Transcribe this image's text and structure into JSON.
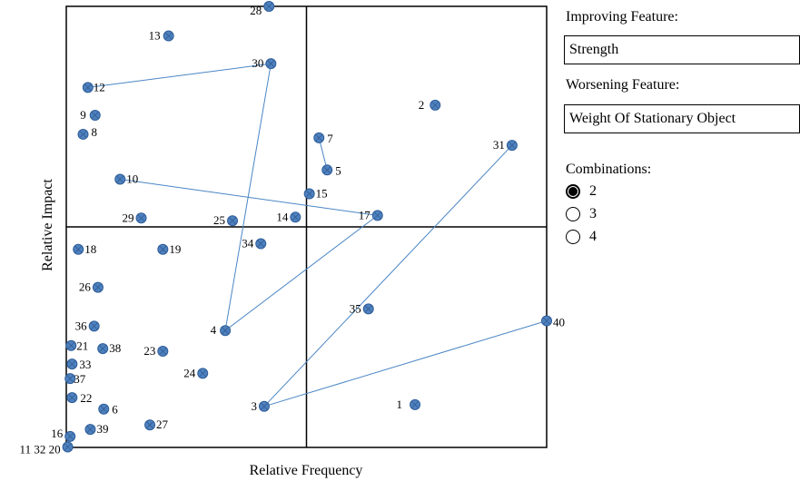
{
  "chart_data": {
    "type": "scatter",
    "xlabel": "Relative Frequency",
    "ylabel": "Relative Impact",
    "xlim": [
      0,
      100
    ],
    "ylim": [
      0,
      100
    ],
    "grid": "quadrant lines at x=50 and y=50",
    "points": [
      {
        "id": "1",
        "x": 72.6,
        "y": 9.7
      },
      {
        "id": "2",
        "x": 76.8,
        "y": 77.6
      },
      {
        "id": "3",
        "x": 41.2,
        "y": 9.3
      },
      {
        "id": "4",
        "x": 33.1,
        "y": 26.5
      },
      {
        "id": "5",
        "x": 54.3,
        "y": 62.9
      },
      {
        "id": "6",
        "x": 7.8,
        "y": 8.7
      },
      {
        "id": "7",
        "x": 52.6,
        "y": 70.2
      },
      {
        "id": "8",
        "x": 3.5,
        "y": 71.0
      },
      {
        "id": "9",
        "x": 6.0,
        "y": 75.3
      },
      {
        "id": "10",
        "x": 11.2,
        "y": 60.8
      },
      {
        "id": "11 32 20",
        "x": 0.3,
        "y": 0.1
      },
      {
        "id": "12",
        "x": 4.5,
        "y": 81.6
      },
      {
        "id": "13",
        "x": 21.3,
        "y": 93.3
      },
      {
        "id": "14",
        "x": 47.7,
        "y": 52.2
      },
      {
        "id": "15",
        "x": 50.6,
        "y": 57.5
      },
      {
        "id": "16",
        "x": 0.8,
        "y": 2.5
      },
      {
        "id": "17",
        "x": 64.8,
        "y": 52.6
      },
      {
        "id": "18",
        "x": 2.5,
        "y": 44.9
      },
      {
        "id": "19",
        "x": 20.1,
        "y": 44.9
      },
      {
        "id": "21",
        "x": 1.0,
        "y": 23.1
      },
      {
        "id": "22",
        "x": 1.2,
        "y": 11.3
      },
      {
        "id": "23",
        "x": 20.1,
        "y": 21.8
      },
      {
        "id": "24",
        "x": 28.4,
        "y": 16.8
      },
      {
        "id": "25",
        "x": 34.6,
        "y": 51.4
      },
      {
        "id": "26",
        "x": 6.6,
        "y": 36.3
      },
      {
        "id": "27",
        "x": 17.4,
        "y": 5.1
      },
      {
        "id": "28",
        "x": 42.2,
        "y": 100.0
      },
      {
        "id": "29",
        "x": 15.6,
        "y": 52.0
      },
      {
        "id": "30",
        "x": 42.6,
        "y": 87.0
      },
      {
        "id": "31",
        "x": 92.8,
        "y": 68.5
      },
      {
        "id": "33",
        "x": 1.2,
        "y": 18.9
      },
      {
        "id": "34",
        "x": 40.5,
        "y": 46.2
      },
      {
        "id": "35",
        "x": 62.9,
        "y": 31.4
      },
      {
        "id": "36",
        "x": 5.8,
        "y": 27.5
      },
      {
        "id": "37",
        "x": 0.8,
        "y": 15.6
      },
      {
        "id": "38",
        "x": 7.6,
        "y": 22.4
      },
      {
        "id": "39",
        "x": 5.0,
        "y": 4.1
      },
      {
        "id": "40",
        "x": 100.0,
        "y": 28.7
      }
    ],
    "connections": [
      [
        "12",
        "30"
      ],
      [
        "30",
        "4"
      ],
      [
        "4",
        "17"
      ],
      [
        "10",
        "17"
      ],
      [
        "7",
        "5"
      ],
      [
        "31",
        "3"
      ],
      [
        "3",
        "40"
      ]
    ]
  },
  "panel": {
    "improving_label": "Improving Feature:",
    "improving_value": "Strength",
    "worsening_label": "Worsening Feature:",
    "worsening_value": "Weight Of Stationary Object",
    "combinations_label": "Combinations:",
    "combinations": [
      "2",
      "3",
      "4"
    ],
    "selected_combination": "2"
  },
  "colors": {
    "marker_fill": "#4f81bd",
    "marker_stroke": "#2f5d99",
    "connection_line": "#4a86c5",
    "axis": "#000000"
  }
}
